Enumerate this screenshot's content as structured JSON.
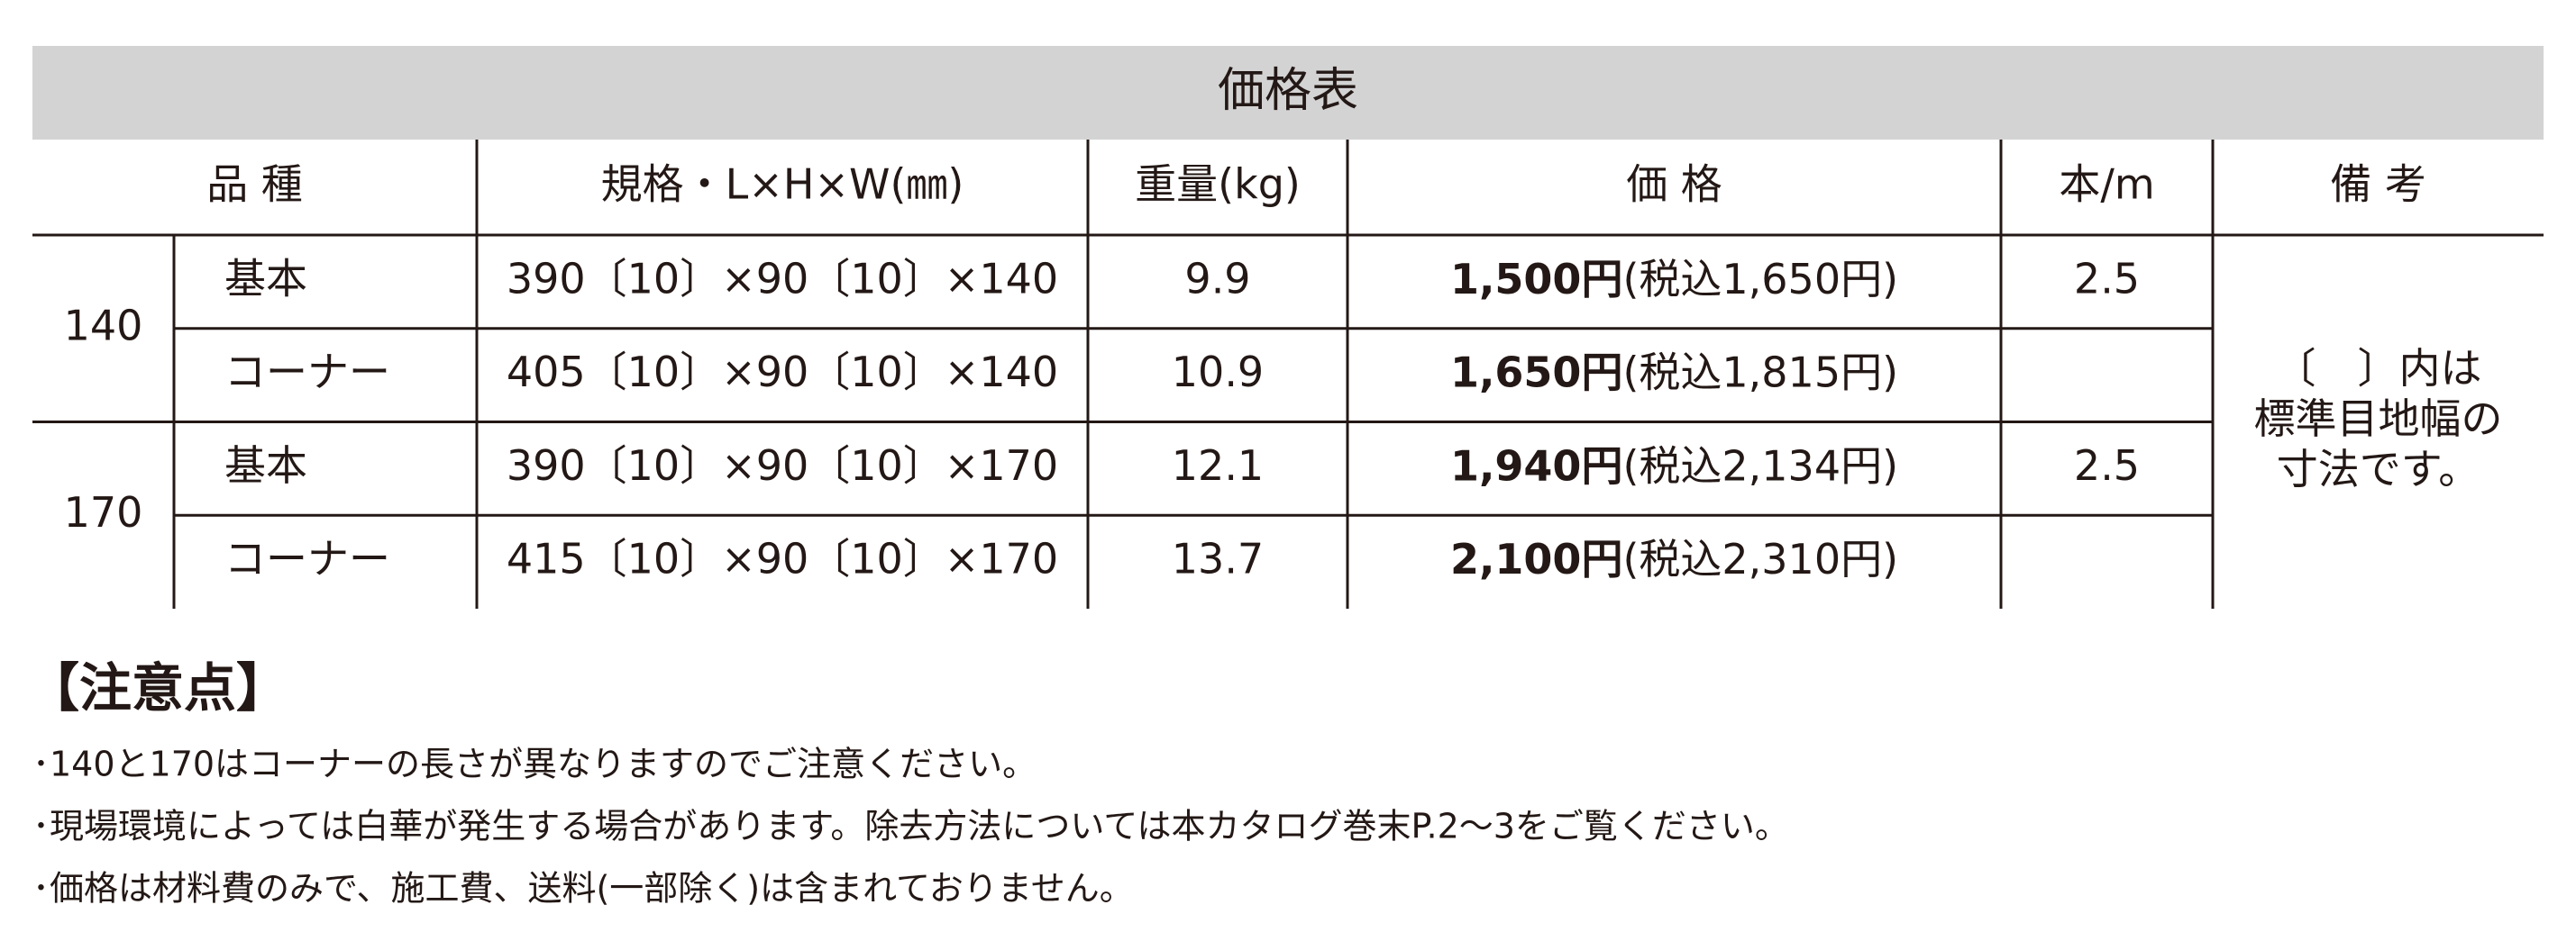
{
  "table": {
    "title": "価格表",
    "headers": [
      "品 種",
      "規格・L×H×W(㎜)",
      "重量(kg)",
      "価 格",
      "本/m",
      "備 考"
    ],
    "groups": [
      {
        "label": "140",
        "rows": [
          {
            "kind": "基本",
            "spec": "390〔10〕×90〔10〕×140",
            "weight": "9.9",
            "price": "1,500円",
            "price_tax": "(税込1,650円)",
            "per_m": "2.5"
          },
          {
            "kind": "コーナー",
            "spec": "405〔10〕×90〔10〕×140",
            "weight": "10.9",
            "price": "1,650円",
            "price_tax": "(税込1,815円)",
            "per_m": null
          }
        ]
      },
      {
        "label": "170",
        "rows": [
          {
            "kind": "基本",
            "spec": "390〔10〕×90〔10〕×170",
            "weight": "12.1",
            "price": "1,940円",
            "price_tax": "(税込2,134円)",
            "per_m": "2.5"
          },
          {
            "kind": "コーナー",
            "spec": "415〔10〕×90〔10〕×170",
            "weight": "13.7",
            "price": "2,100円",
            "price_tax": "(税込2,310円)",
            "per_m": null
          }
        ]
      }
    ],
    "remark": [
      "〔　〕内は",
      "標準目地幅の",
      "寸法です。"
    ]
  },
  "notes": {
    "heading": "【注意点】",
    "items": [
      "･140と170はコーナーの長さが異なりますのでご注意ください。",
      "･現場環境によっては白華が発生する場合があります。除去方法については本カタログ巻末P.2～3をご覧ください。",
      "･価格は材料費のみで、施工費、送料(一部除く)は含まれておりません。"
    ]
  }
}
